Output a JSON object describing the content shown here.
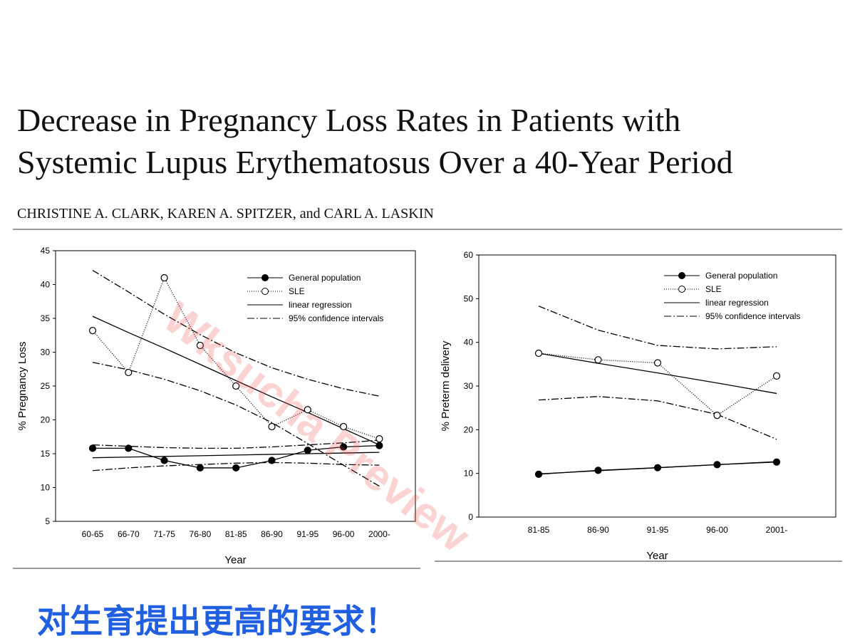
{
  "slide": {
    "title": [
      "Decrease in Pregnancy Loss Rates in Patients with",
      "Systemic Lupus Erythematosus Over a 40-Year Period"
    ],
    "authors": "CHRISTINE A. CLARK, KAREN A. SPITZER, and CARL A. LASKIN",
    "caption": "对生育提出更高的要求！",
    "watermark": "Wksucha Preview"
  },
  "chart_data": [
    {
      "type": "line",
      "ylabel": "% Pregnancy Loss",
      "xlabel": "Year",
      "categories": [
        "60-65",
        "66-70",
        "71-75",
        "76-80",
        "81-85",
        "86-90",
        "91-95",
        "96-00",
        "2000-"
      ],
      "ylim": [
        5,
        45
      ],
      "yticks": [
        5,
        10,
        15,
        20,
        25,
        30,
        35,
        40,
        45
      ],
      "series": [
        {
          "name": "General population",
          "color": "#000000",
          "marker": "filled",
          "values": [
            15.8,
            15.8,
            14,
            12.9,
            12.9,
            14,
            15.5,
            16,
            16.2
          ]
        },
        {
          "name": "SLE",
          "color": "#000000",
          "marker": "open",
          "values": [
            33.2,
            27,
            41,
            31,
            25,
            19,
            21.5,
            19,
            17.2
          ]
        }
      ],
      "regression": {
        "name": "linear regression",
        "lines": [
          [
            35.3,
            32.9,
            30.6,
            28.2,
            25.8,
            23.4,
            21.1,
            18.7,
            16.3
          ],
          [
            14.4,
            14.5,
            14.6,
            14.7,
            14.8,
            14.9,
            15.0,
            15.1,
            15.2
          ]
        ]
      },
      "confidence": {
        "name": "95% confidence intervals",
        "lines": [
          [
            42.1,
            38.9,
            35.6,
            32.6,
            29.9,
            27.7,
            26,
            24.6,
            23.5
          ],
          [
            28.5,
            27.4,
            26,
            24.3,
            22.2,
            19.6,
            16.5,
            13.3,
            10.2
          ],
          [
            16.3,
            16.1,
            15.9,
            15.8,
            15.8,
            16,
            16.3,
            16.6,
            17
          ],
          [
            12.5,
            12.9,
            13.2,
            13.4,
            13.6,
            13.7,
            13.6,
            13.4,
            13.3
          ]
        ]
      }
    },
    {
      "type": "line",
      "ylabel": "% Preterm delivery",
      "xlabel": "Year",
      "categories": [
        "81-85",
        "86-90",
        "91-95",
        "96-00",
        "2001-"
      ],
      "ylim": [
        0,
        60
      ],
      "yticks": [
        0,
        10,
        20,
        30,
        40,
        50,
        60
      ],
      "series": [
        {
          "name": "General population",
          "color": "#000000",
          "marker": "filled",
          "values": [
            9.8,
            10.7,
            11.3,
            12,
            12.6
          ]
        },
        {
          "name": "SLE",
          "color": "#000000",
          "marker": "open",
          "values": [
            37.5,
            36,
            35.3,
            23.3,
            32.3
          ]
        }
      ],
      "regression": {
        "name": "linear regression",
        "lines": [
          [
            37.5,
            35.2,
            33,
            30.7,
            28.3
          ],
          [
            9.9,
            10.6,
            11.3,
            12,
            12.7
          ]
        ]
      },
      "confidence": {
        "name": "95% confidence intervals",
        "lines": [
          [
            48.3,
            42.8,
            39.3,
            38.5,
            39
          ],
          [
            26.8,
            27.6,
            26.6,
            23.5,
            17.8
          ]
        ]
      }
    }
  ]
}
